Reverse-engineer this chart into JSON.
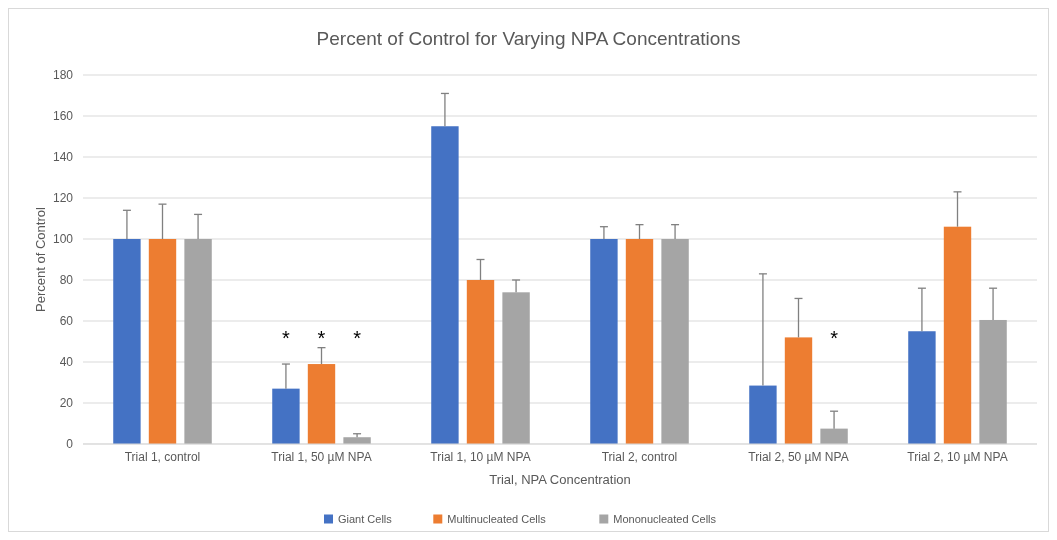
{
  "chart_data": {
    "type": "bar",
    "title": "Percent of Control for Varying NPA Concentrations",
    "xlabel": "Trial, NPA Concentration",
    "ylabel": "Percent of Control",
    "categories": [
      "Trial 1, control",
      "Trial 1, 50 µM NPA",
      "Trial 1, 10 µM NPA",
      "Trial 2, control",
      "Trial 2, 50 µM NPA",
      "Trial 2, 10 µM NPA"
    ],
    "series": [
      {
        "name": "Giant Cells",
        "color": "#4472c4",
        "values": [
          100,
          27,
          155,
          100,
          28.5,
          55
        ],
        "errors": [
          [
            100,
            114
          ],
          [
            27,
            39
          ],
          [
            155,
            171
          ],
          [
            100,
            106
          ],
          [
            28.5,
            83
          ],
          [
            55,
            76
          ]
        ]
      },
      {
        "name": "Multinucleated Cells",
        "color": "#ed7d31",
        "values": [
          100,
          39,
          80,
          100,
          52,
          106
        ],
        "errors": [
          [
            100,
            117
          ],
          [
            39,
            47
          ],
          [
            80,
            90
          ],
          [
            100,
            107
          ],
          [
            52,
            71
          ],
          [
            106,
            123
          ]
        ]
      },
      {
        "name": "Mononucleated Cells",
        "color": "#a5a5a5",
        "values": [
          100,
          3.3,
          74,
          100,
          7.5,
          60.5
        ],
        "errors": [
          [
            100,
            112
          ],
          [
            3.3,
            5
          ],
          [
            74,
            80
          ],
          [
            100,
            107
          ],
          [
            7.5,
            16
          ],
          [
            60.5,
            76
          ]
        ]
      }
    ],
    "ylim": [
      0,
      180
    ],
    "yticks": [
      0,
      20,
      40,
      60,
      80,
      100,
      120,
      140,
      160,
      180
    ],
    "grid": "y",
    "legend": "bottom",
    "annotations": [
      "*",
      "*",
      "*",
      "*"
    ]
  }
}
